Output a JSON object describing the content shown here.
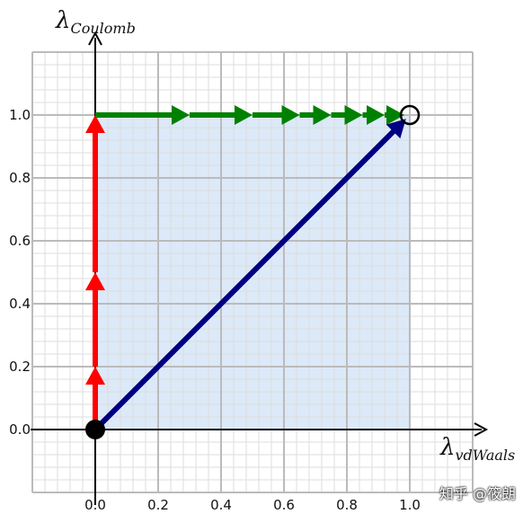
{
  "chart_data": {
    "type": "line",
    "axis_labels": {
      "x_lambda": "λ",
      "x_subscript": "vdWaals",
      "y_lambda": "λ",
      "y_subscript": "Coulomb"
    },
    "xlim": [
      -0.2,
      1.2
    ],
    "ylim": [
      -0.2,
      1.2
    ],
    "x_ticks": [
      "0.0",
      "0.2",
      "0.4",
      "0.6",
      "0.8",
      "1.0"
    ],
    "y_ticks": [
      "0.0",
      "0.2",
      "0.4",
      "0.6",
      "0.8",
      "1.0"
    ],
    "x_tick_values": [
      0.0,
      0.2,
      0.4,
      0.6,
      0.8,
      1.0
    ],
    "y_tick_values": [
      0.0,
      0.2,
      0.4,
      0.6,
      0.8,
      1.0
    ],
    "minor_step": 0.04,
    "grid": true,
    "region": {
      "x": [
        0.0,
        1.0
      ],
      "y": [
        0.0,
        1.0
      ],
      "color": "#dce9f8"
    },
    "paths": [
      {
        "color": "#ff0000",
        "points": [
          [
            0.0,
            0.0
          ],
          [
            0.0,
            0.2
          ],
          [
            0.0,
            0.5
          ],
          [
            0.0,
            1.0
          ]
        ]
      },
      {
        "color": "#008000",
        "points": [
          [
            0.0,
            1.0
          ],
          [
            0.3,
            1.0
          ],
          [
            0.5,
            1.0
          ],
          [
            0.65,
            1.0
          ],
          [
            0.75,
            1.0
          ],
          [
            0.85,
            1.0
          ],
          [
            0.92,
            1.0
          ],
          [
            1.0,
            1.0
          ]
        ]
      },
      {
        "color": "#000080",
        "points": [
          [
            0.0,
            0.0
          ],
          [
            1.0,
            1.0
          ]
        ]
      }
    ],
    "start_point": [
      0.0,
      0.0
    ],
    "end_point": [
      1.0,
      1.0
    ]
  },
  "watermark": "知乎 @筱朗",
  "colors": {
    "grid_major": "#bbbbbb",
    "grid_minor": "#dddddd",
    "axis": "#000000",
    "region": "#dce9f8"
  }
}
